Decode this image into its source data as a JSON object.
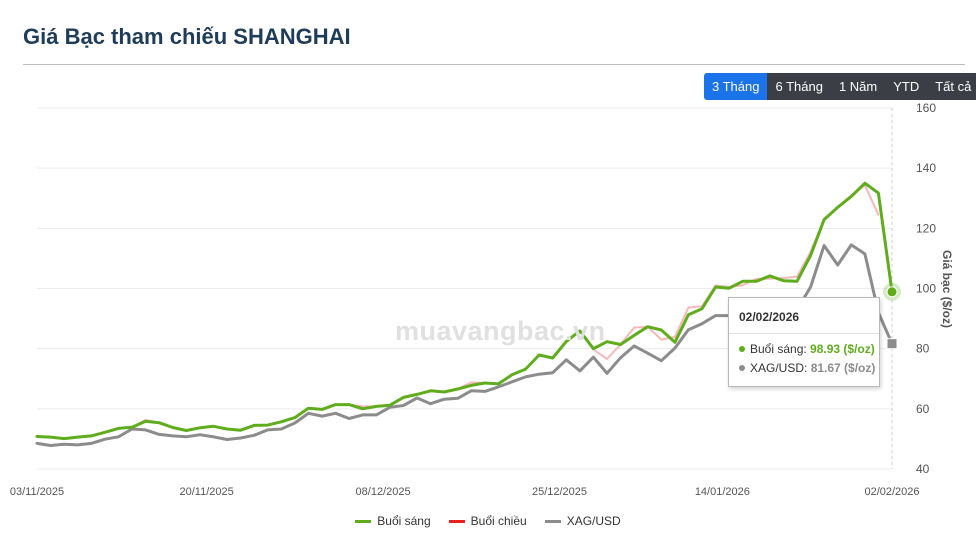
{
  "title": "Giá Bạc tham chiếu SHANGHAI",
  "range_buttons": [
    "3 Tháng",
    "6 Tháng",
    "1 Năm",
    "YTD",
    "Tất cả"
  ],
  "active_range": "3 Tháng",
  "watermark": "muavangbac.vn",
  "tooltip": {
    "date": "02/02/2026",
    "rows": [
      {
        "label": "Buổi sáng: ",
        "value": "98.93 ($/oz)",
        "color": "#5fad1c"
      },
      {
        "label": "XAG/USD: ",
        "value": "81.67 ($/oz)",
        "color": "#8c8c8c"
      }
    ]
  },
  "chart_data": {
    "type": "line",
    "title": "Giá Bạc tham chiếu SHANGHAI",
    "ylabel": "Giá bạc ($/oz)",
    "ylim": [
      40,
      160
    ],
    "yticks": [
      40,
      60,
      80,
      100,
      120,
      140,
      160
    ],
    "xticks": [
      "03/11/2025",
      "20/11/2025",
      "08/12/2025",
      "25/12/2025",
      "14/01/2026",
      "02/02/2026"
    ],
    "grid": true,
    "legend_position": "bottom",
    "series": [
      {
        "name": "Buổi sáng",
        "color": "#5fad1c",
        "values": [
          50.8,
          50.6,
          50.1,
          50.6,
          51.0,
          52.2,
          53.5,
          53.9,
          55.9,
          55.4,
          53.8,
          52.8,
          53.7,
          54.2,
          53.3,
          52.9,
          54.5,
          54.6,
          55.7,
          57.1,
          60.2,
          59.8,
          61.4,
          61.4,
          60.0,
          60.8,
          61.2,
          63.8,
          64.8,
          66.0,
          65.6,
          66.6,
          67.8,
          68.6,
          68.3,
          71.3,
          73.2,
          77.9,
          76.9,
          82.4,
          85.9,
          80.0,
          82.3,
          81.4,
          84.4,
          87.3,
          86.2,
          82.1,
          91.3,
          93.3,
          100.5,
          100.1,
          102.4,
          102.4,
          104.2,
          102.6,
          102.4,
          111.0,
          122.9,
          127.0,
          130.6,
          135.0,
          131.7,
          98.9
        ]
      },
      {
        "name": "Buổi chiều",
        "color": "#f5b8b8",
        "values": [
          50.8,
          50.6,
          50.1,
          50.6,
          51.0,
          52.2,
          53.5,
          53.9,
          56.3,
          55.4,
          53.8,
          52.8,
          53.7,
          54.2,
          53.3,
          52.9,
          54.5,
          54.6,
          55.7,
          57.1,
          60.2,
          59.8,
          61.4,
          61.4,
          60.8,
          60.8,
          61.2,
          63.8,
          64.8,
          66.0,
          65.6,
          66.6,
          68.8,
          68.6,
          68.3,
          71.3,
          73.2,
          77.9,
          76.9,
          82.4,
          85.9,
          79.8,
          76.6,
          81.4,
          87.0,
          87.3,
          83.0,
          83.9,
          93.7,
          94.1,
          101.0,
          100.5,
          101.1,
          103.2,
          103.3,
          103.5,
          103.9,
          112.2,
          122.9,
          127.0,
          131.0,
          134.3,
          124.5
        ]
      },
      {
        "name": "XAG/USD",
        "color": "#8c8c8c",
        "values": [
          48.5,
          47.8,
          48.2,
          48.0,
          48.5,
          49.9,
          50.7,
          53.3,
          53.0,
          51.5,
          51.0,
          50.7,
          51.4,
          50.7,
          49.8,
          50.3,
          51.2,
          53.0,
          53.3,
          55.3,
          58.5,
          57.6,
          58.5,
          56.8,
          58.0,
          58.0,
          60.5,
          61.1,
          63.6,
          61.7,
          63.2,
          63.5,
          66.0,
          65.8,
          67.3,
          69.0,
          70.6,
          71.5,
          72.0,
          76.3,
          72.6,
          77.2,
          71.8,
          77.0,
          80.9,
          78.5,
          76.0,
          80.2,
          86.3,
          88.3,
          91.0,
          91.0,
          91.0,
          91.5,
          92.0,
          93.5,
          93.0,
          100.5,
          114.3,
          107.8,
          114.5,
          111.5,
          92.0,
          81.67
        ]
      }
    ]
  }
}
